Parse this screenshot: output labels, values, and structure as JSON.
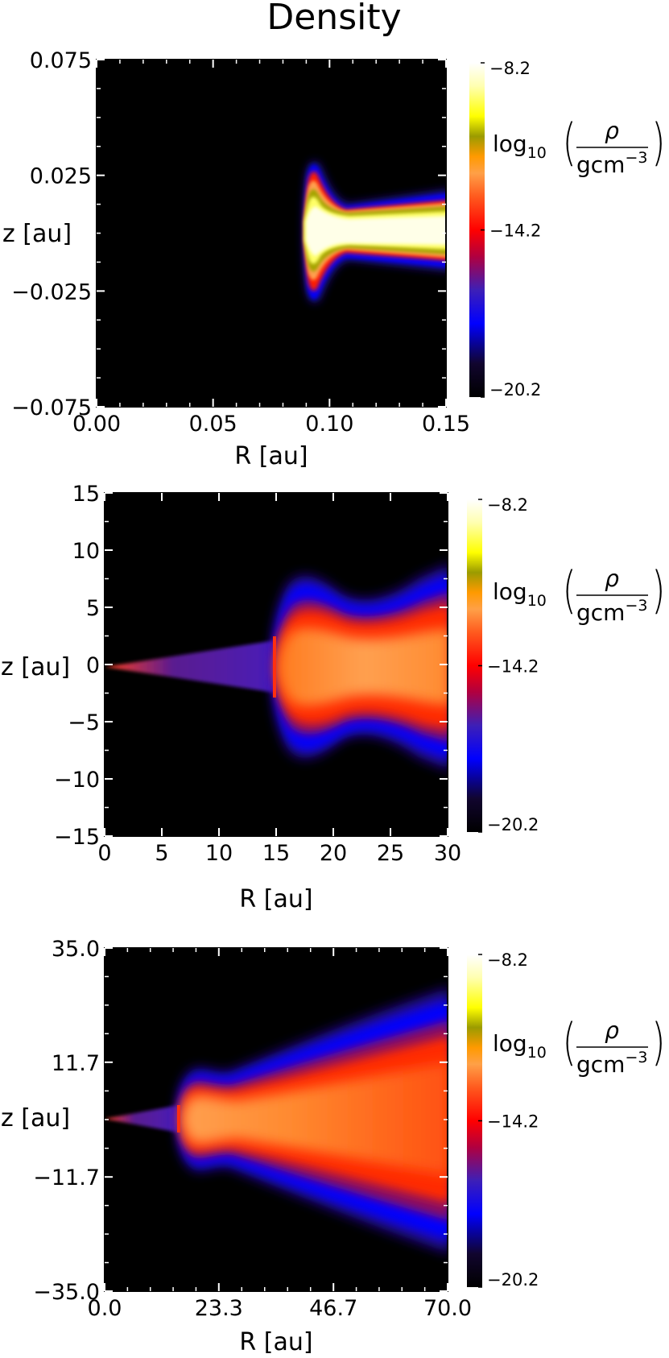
{
  "figure_title": "Density",
  "chart_data": [
    {
      "type": "heatmap",
      "title": "Density",
      "xlabel": "R [au]",
      "ylabel": "z [au]",
      "xlim": [
        0.0,
        0.15
      ],
      "ylim": [
        -0.075,
        0.075
      ],
      "xticks": [
        "0.00",
        "0.05",
        "0.10",
        "0.15"
      ],
      "yticks": [
        "0.075",
        "0.025",
        "−0.025",
        "−0.075"
      ],
      "colorbar": {
        "label_func": "log",
        "label_sub": "10",
        "label_num": "ρ",
        "label_den": "gcm",
        "label_exp": "−3",
        "ticks": [
          "−8.2",
          "−14.2",
          "−20.2"
        ],
        "range": [
          -20.2,
          -8.2
        ]
      },
      "structure": {
        "inner_rim_radius_au": 0.088,
        "dense_midplane_half_height_au": [
          0.013,
          0.011
        ],
        "flare_peak_radius_au": 0.09,
        "flare_peak_height_au": 0.032,
        "neck_radius_au": 0.105,
        "outer_height_au": 0.019,
        "midplane_log_density": -8.2
      }
    },
    {
      "type": "heatmap",
      "xlabel": "R [au]",
      "ylabel": "z [au]",
      "xlim": [
        0,
        30
      ],
      "ylim": [
        -15,
        15
      ],
      "xticks": [
        "0",
        "5",
        "10",
        "15",
        "20",
        "25",
        "30"
      ],
      "yticks": [
        "15",
        "10",
        "5",
        "0",
        "−5",
        "−10",
        "−15"
      ],
      "colorbar": {
        "label_func": "log",
        "label_sub": "10",
        "label_num": "ρ",
        "label_den": "gcm",
        "label_exp": "−3",
        "ticks": [
          "−8.2",
          "−14.2",
          "−20.2"
        ],
        "range": [
          -20.2,
          -8.2
        ]
      },
      "structure": {
        "inner_wedge_half_height_at_15au": 2.3,
        "gap_edge_radius_au": 15,
        "outer_disk_surface_height_au": [
          5.5,
          7.5
        ],
        "midplane_log_density": -13.0
      }
    },
    {
      "type": "heatmap",
      "xlabel": "R [au]",
      "ylabel": "z [au]",
      "xlim": [
        0.0,
        70.0
      ],
      "ylim": [
        -35.0,
        35.0
      ],
      "xticks": [
        "0.0",
        "23.3",
        "46.7",
        "70.0"
      ],
      "yticks": [
        "35.0",
        "11.7",
        "z [au]",
        "−11.7",
        "−35.0"
      ],
      "ytick_values": [
        "35.0",
        "11.7",
        "−11.7",
        "−35.0"
      ],
      "colorbar": {
        "label_func": "log",
        "label_sub": "10",
        "label_num": "ρ",
        "label_den": "gcm",
        "label_exp": "−3",
        "ticks": [
          "−8.2",
          "−14.2",
          "−20.2"
        ],
        "range": [
          -20.2,
          -8.2
        ]
      },
      "structure": {
        "gap_edge_radius_au": 15,
        "outer_disk_surface_height_at_70au": 20,
        "midplane_log_density": -13.0
      }
    }
  ]
}
